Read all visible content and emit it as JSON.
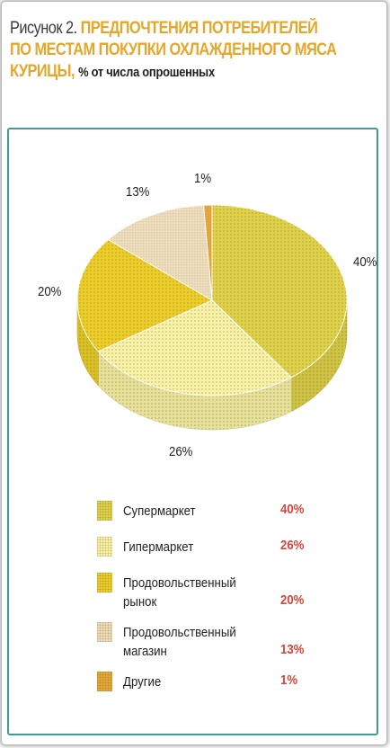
{
  "caption": {
    "prefix": "Рисунок 2.",
    "title_line1": "ПРЕДПОЧТЕНИЯ ПОТРЕБИТЕЛЕЙ",
    "title_line2": "ПО МЕСТАМ ПОКУПКИ ОХЛАЖДЕННОГО МЯСА",
    "title_line3": "КУРИЦЫ,",
    "suffix": "% от числа опрошенных"
  },
  "chart_data": {
    "type": "pie",
    "title": "ПРЕДПОЧТЕНИЯ ПОТРЕБИТЕЛЕЙ ПО МЕСТАМ ПОКУПКИ ОХЛАЖДЕННОГО МЯСА КУРИЦЫ",
    "unit": "% от числа опрошенных",
    "slices": [
      {
        "name": "Супермаркет",
        "value": 40,
        "label": "40%",
        "value_label": "40%",
        "color": "#dfd24a"
      },
      {
        "name": "Гипермаркет",
        "value": 26,
        "label": "26%",
        "value_label": "26%",
        "color": "#f8f2a8"
      },
      {
        "name": "Продовольственный рынок",
        "value": 20,
        "label": "20%",
        "value_label": "20%",
        "color": "#eccd2a"
      },
      {
        "name": "Продовольственный магазин",
        "value": 13,
        "label": "13%",
        "value_label": "13%",
        "color": "#eeddbc"
      },
      {
        "name": "Другие",
        "value": 1,
        "label": "1%",
        "value_label": "1%",
        "color": "#e6a63a"
      }
    ],
    "legend_placement": "bottom"
  },
  "colors": {
    "title": "#e5a72a",
    "frame": "#3f9a93",
    "legend_values": "#d9443a"
  }
}
